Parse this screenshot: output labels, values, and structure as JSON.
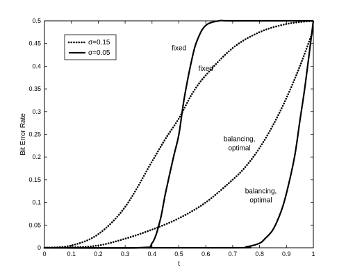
{
  "chart_data": {
    "type": "line",
    "title": "",
    "xlabel": "t",
    "ylabel": "Bit Error Rate",
    "xlim": [
      0,
      1
    ],
    "ylim": [
      0,
      0.5
    ],
    "xticks": [
      "0",
      "0.1",
      "0.2",
      "0.3",
      "0.4",
      "0.5",
      "0.6",
      "0.7",
      "0.8",
      "0.9",
      "1"
    ],
    "yticks": [
      "0",
      "0.05",
      "0.1",
      "0.15",
      "0.2",
      "0.25",
      "0.3",
      "0.35",
      "0.4",
      "0.45",
      "0.5"
    ],
    "grid": false,
    "legend_position": "top-left",
    "legend": [
      {
        "label": "σ=0.15",
        "style": "dotted"
      },
      {
        "label": "σ=0.05",
        "style": "solid"
      }
    ],
    "series": [
      {
        "label": "fixed",
        "sigma": "σ=0.15",
        "style": "dotted",
        "x": [
          0,
          0.1,
          0.2,
          0.3,
          0.4,
          0.45,
          0.5,
          0.55,
          0.6,
          0.7,
          0.8,
          0.9,
          1.0
        ],
        "y": [
          0.0,
          0.005,
          0.03,
          0.09,
          0.19,
          0.24,
          0.285,
          0.34,
          0.38,
          0.44,
          0.475,
          0.493,
          0.5
        ]
      },
      {
        "label": "fixed",
        "sigma": "σ=0.05",
        "style": "solid",
        "x": [
          0,
          0.35,
          0.4,
          0.43,
          0.45,
          0.48,
          0.5,
          0.52,
          0.55,
          0.57,
          0.6,
          0.65,
          0.7,
          1.0
        ],
        "y": [
          0.0,
          0.0,
          0.01,
          0.06,
          0.12,
          0.2,
          0.25,
          0.33,
          0.42,
          0.46,
          0.49,
          0.5,
          0.5,
          0.5
        ]
      },
      {
        "label": "balancing, optimal",
        "sigma": "σ=0.15",
        "style": "dotted",
        "x": [
          0,
          0.1,
          0.2,
          0.3,
          0.4,
          0.5,
          0.6,
          0.7,
          0.75,
          0.8,
          0.85,
          0.9,
          0.95,
          1.0
        ],
        "y": [
          0.0,
          0.001,
          0.005,
          0.02,
          0.04,
          0.065,
          0.1,
          0.15,
          0.18,
          0.22,
          0.27,
          0.33,
          0.4,
          0.48
        ]
      },
      {
        "label": "balancing, optimal",
        "sigma": "σ=0.05",
        "style": "solid",
        "x": [
          0,
          0.7,
          0.75,
          0.8,
          0.82,
          0.85,
          0.88,
          0.9,
          0.93,
          0.95,
          0.97,
          1.0
        ],
        "y": [
          0.0,
          0.0,
          0.002,
          0.01,
          0.02,
          0.04,
          0.08,
          0.12,
          0.2,
          0.28,
          0.36,
          0.5
        ]
      }
    ],
    "annotations": [
      {
        "text": "fixed",
        "x": 0.5,
        "y": 0.435
      },
      {
        "text": "fixed",
        "x": 0.6,
        "y": 0.39
      },
      {
        "text": "balancing,",
        "x": 0.725,
        "y": 0.235
      },
      {
        "text": "optimal",
        "x": 0.725,
        "y": 0.215
      },
      {
        "text": "balancing,",
        "x": 0.805,
        "y": 0.12
      },
      {
        "text": "optimal",
        "x": 0.805,
        "y": 0.1
      }
    ]
  }
}
